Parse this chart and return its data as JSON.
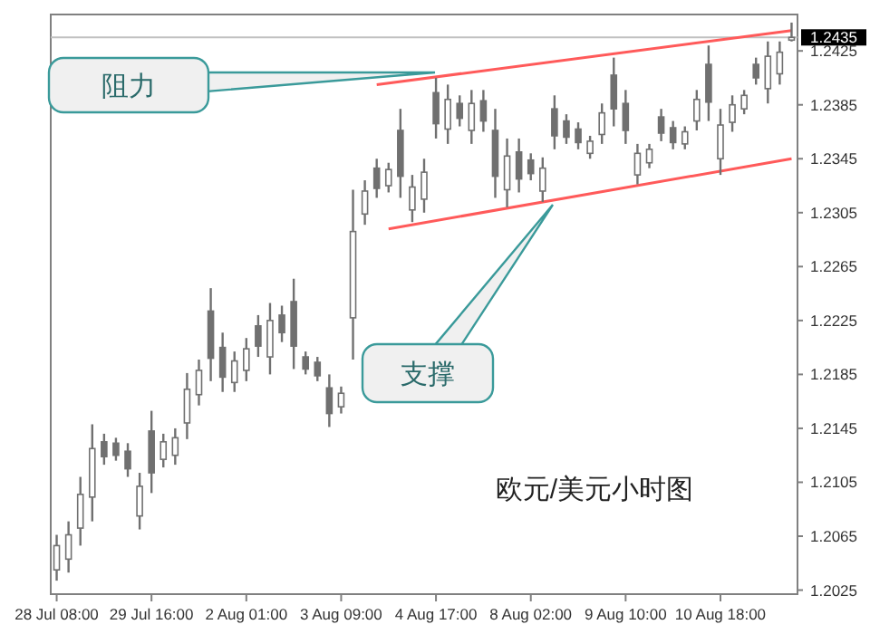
{
  "chart_data": {
    "type": "candlestick",
    "color": "#707070",
    "categories": [
      "28 Jul 08:00",
      null,
      null,
      null,
      null,
      null,
      null,
      null,
      "29 Jul 16:00",
      null,
      null,
      null,
      null,
      null,
      null,
      null,
      "2 Aug 01:00",
      null,
      null,
      null,
      null,
      null,
      null,
      null,
      "3 Aug 09:00",
      null,
      null,
      null,
      null,
      null,
      null,
      null,
      "4 Aug 17:00",
      null,
      null,
      null,
      null,
      null,
      null,
      null,
      "8 Aug 02:00",
      null,
      null,
      null,
      null,
      null,
      null,
      null,
      "9 Aug 10:00",
      null,
      null,
      null,
      null,
      null,
      null,
      null,
      "10 Aug 18:00",
      null,
      null,
      null,
      null,
      null,
      null
    ],
    "ohlc": [
      [
        1.204,
        1.2066,
        1.2032,
        1.2058
      ],
      [
        1.2048,
        1.2076,
        1.2038,
        1.2066
      ],
      [
        1.2071,
        1.2109,
        1.2058,
        1.2096
      ],
      [
        1.2094,
        1.2148,
        1.2076,
        1.213
      ],
      [
        1.2135,
        1.2141,
        1.2118,
        1.2124
      ],
      [
        1.2134,
        1.2138,
        1.2121,
        1.2125
      ],
      [
        1.2128,
        1.2134,
        1.2109,
        1.2115
      ],
      [
        1.208,
        1.2112,
        1.207,
        1.2102
      ],
      [
        1.2143,
        1.2158,
        1.2097,
        1.2112
      ],
      [
        1.2122,
        1.2141,
        1.2116,
        1.2135
      ],
      [
        1.2125,
        1.2145,
        1.2118,
        1.2138
      ],
      [
        1.2149,
        1.2186,
        1.2137,
        1.2174
      ],
      [
        1.217,
        1.2196,
        1.2162,
        1.2188
      ],
      [
        1.2232,
        1.2249,
        1.218,
        1.2197
      ],
      [
        1.2205,
        1.2216,
        1.2172,
        1.2183
      ],
      [
        1.2179,
        1.2202,
        1.2172,
        1.2195
      ],
      [
        1.2188,
        1.2212,
        1.218,
        1.2204
      ],
      [
        1.2221,
        1.2229,
        1.2198,
        1.2206
      ],
      [
        1.2198,
        1.2238,
        1.2185,
        1.2225
      ],
      [
        1.2229,
        1.2236,
        1.2209,
        1.2216
      ],
      [
        1.2239,
        1.2256,
        1.2189,
        1.2206
      ],
      [
        1.2198,
        1.2202,
        1.2185,
        1.2189
      ],
      [
        1.2194,
        1.2198,
        1.218,
        1.2184
      ],
      [
        1.2175,
        1.2185,
        1.2146,
        1.2156
      ],
      [
        1.2161,
        1.2176,
        1.2156,
        1.2171
      ],
      [
        1.2227,
        1.2322,
        1.2196,
        1.2291
      ],
      [
        1.2304,
        1.2329,
        1.2296,
        1.2321
      ],
      [
        1.2338,
        1.2345,
        1.2316,
        1.2323
      ],
      [
        1.2325,
        1.2342,
        1.232,
        1.2337
      ],
      [
        1.2366,
        1.2382,
        1.2316,
        1.2332
      ],
      [
        1.2307,
        1.2333,
        1.2298,
        1.2324
      ],
      [
        1.2315,
        1.2345,
        1.2305,
        1.2335
      ],
      [
        1.2394,
        1.2405,
        1.236,
        1.2371
      ],
      [
        1.2367,
        1.24,
        1.2356,
        1.2389
      ],
      [
        1.2386,
        1.2392,
        1.2369,
        1.2375
      ],
      [
        1.2366,
        1.2396,
        1.2356,
        1.2386
      ],
      [
        1.2388,
        1.2396,
        1.2365,
        1.2373
      ],
      [
        1.2366,
        1.2382,
        1.2316,
        1.2332
      ],
      [
        1.2322,
        1.236,
        1.2309,
        1.2347
      ],
      [
        1.235,
        1.236,
        1.232,
        1.233
      ],
      [
        1.2344,
        1.2349,
        1.2329,
        1.2334
      ],
      [
        1.2321,
        1.2346,
        1.2313,
        1.2338
      ],
      [
        1.2382,
        1.2392,
        1.2352,
        1.2362
      ],
      [
        1.2373,
        1.2378,
        1.2356,
        1.2361
      ],
      [
        1.2367,
        1.2372,
        1.2352,
        1.2357
      ],
      [
        1.2349,
        1.2362,
        1.2345,
        1.2358
      ],
      [
        1.2363,
        1.2386,
        1.2356,
        1.2379
      ],
      [
        1.2407,
        1.242,
        1.2369,
        1.2382
      ],
      [
        1.2386,
        1.2396,
        1.2356,
        1.2366
      ],
      [
        1.2333,
        1.2356,
        1.2326,
        1.2349
      ],
      [
        1.2342,
        1.2356,
        1.2338,
        1.2352
      ],
      [
        1.2376,
        1.2382,
        1.2358,
        1.2364
      ],
      [
        1.2368,
        1.2373,
        1.2352,
        1.2357
      ],
      [
        1.2356,
        1.2369,
        1.2352,
        1.2365
      ],
      [
        1.2373,
        1.2396,
        1.2366,
        1.2389
      ],
      [
        1.2415,
        1.2429,
        1.2373,
        1.2387
      ],
      [
        1.2345,
        1.2382,
        1.2333,
        1.237
      ],
      [
        1.2372,
        1.2392,
        1.2365,
        1.2385
      ],
      [
        1.2382,
        1.2396,
        1.2378,
        1.2392
      ],
      [
        1.2415,
        1.242,
        1.24,
        1.2405
      ],
      [
        1.2397,
        1.2432,
        1.2386,
        1.2421
      ],
      [
        1.2408,
        1.2432,
        1.24,
        1.2424
      ],
      [
        1.2433,
        1.2446,
        1.2432,
        1.2435
      ]
    ],
    "series": [
      {
        "type": "line",
        "color": "#ff5a5a",
        "values": [
          null,
          null,
          null,
          null,
          null,
          null,
          null,
          null,
          null,
          null,
          null,
          null,
          null,
          null,
          null,
          null,
          null,
          null,
          null,
          null,
          null,
          null,
          null,
          null,
          null,
          null,
          null,
          1.24,
          null,
          null,
          null,
          null,
          null,
          null,
          null,
          null,
          null,
          null,
          null,
          null,
          null,
          null,
          null,
          null,
          null,
          null,
          null,
          null,
          null,
          null,
          null,
          null,
          null,
          null,
          null,
          null,
          null,
          null,
          null,
          null,
          null,
          null,
          1.244
        ]
      },
      {
        "type": "line",
        "color": "#ff5a5a",
        "values": [
          null,
          null,
          null,
          null,
          null,
          null,
          null,
          null,
          null,
          null,
          null,
          null,
          null,
          null,
          null,
          null,
          null,
          null,
          null,
          null,
          null,
          null,
          null,
          null,
          null,
          null,
          null,
          null,
          1.2293,
          null,
          null,
          null,
          null,
          null,
          null,
          null,
          null,
          null,
          null,
          null,
          null,
          null,
          null,
          null,
          null,
          null,
          null,
          null,
          null,
          null,
          null,
          null,
          null,
          null,
          null,
          null,
          null,
          null,
          null,
          null,
          null,
          null,
          1.2345
        ]
      }
    ],
    "ylim": [
      1.2022,
      1.2452
    ],
    "yticks": [
      1.2425,
      1.2385,
      1.2345,
      1.2305,
      1.2265,
      1.2225,
      1.2185,
      1.2145,
      1.2105,
      1.2065,
      1.2025
    ],
    "ref_lines": [
      {
        "axis": "y",
        "value": 1.2435,
        "label": "1.2435",
        "color": "#c0c0c0"
      }
    ],
    "annotations": [
      "阻力",
      "支撑",
      "欧元/美元小时图"
    ]
  }
}
